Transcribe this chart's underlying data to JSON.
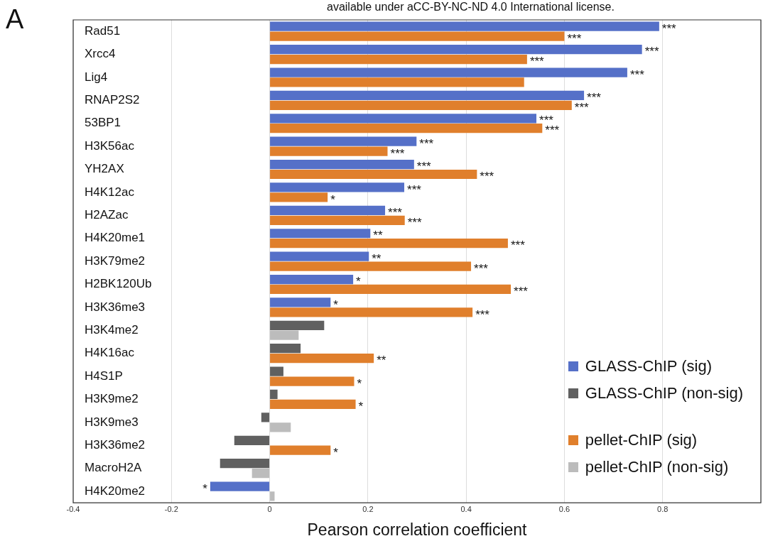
{
  "chart_data": {
    "type": "bar",
    "orientation": "horizontal",
    "xlabel": "Pearson correlation coefficient",
    "annotations": [
      "A",
      "available under aCC-BY-NC-ND 4.0 International license."
    ],
    "categories": [
      "Rad51",
      "Xrcc4",
      "Lig4",
      "RNAP2S2",
      "53BP1",
      "H3K56ac",
      "YH2AX",
      "H4K12ac",
      "H2AZac",
      "H4K20me1",
      "H3K79me2",
      "H2BK120Ub",
      "H3K36me3",
      "H3K4me2",
      "H4K16ac",
      "H4S1P",
      "H3K9me2",
      "H3K9me3",
      "H3K36me2",
      "MacroH2A",
      "H4K20me2"
    ],
    "series": [
      {
        "name": "GLASS-ChIP (sig)",
        "color": "#5570c8",
        "values": [
          0.793,
          0.758,
          0.728,
          0.64,
          0.543,
          0.299,
          0.294,
          0.274,
          0.235,
          0.205,
          0.202,
          0.17,
          0.124,
          null,
          null,
          null,
          null,
          null,
          null,
          null,
          -0.121
        ],
        "value_labels": [
          "***",
          "***",
          "***",
          "***",
          "***",
          "***",
          "***",
          "***",
          "***",
          "**",
          "**",
          "*",
          "*",
          null,
          null,
          null,
          null,
          null,
          null,
          null,
          "*"
        ]
      },
      {
        "name": "GLASS-ChIP (non-sig)",
        "color": "#606060",
        "values": [
          null,
          null,
          null,
          null,
          null,
          null,
          null,
          null,
          null,
          null,
          null,
          null,
          null,
          0.111,
          0.063,
          0.028,
          0.016,
          -0.017,
          -0.072,
          -0.101,
          null
        ],
        "value_labels": [
          null,
          null,
          null,
          null,
          null,
          null,
          null,
          null,
          null,
          null,
          null,
          null,
          null,
          null,
          null,
          null,
          null,
          null,
          null,
          null,
          null
        ]
      },
      {
        "name": "pellet-ChIP (sig)",
        "color": "#e07f2c",
        "values": [
          0.6,
          0.524,
          0.518,
          0.615,
          0.555,
          0.24,
          0.422,
          0.118,
          0.275,
          0.485,
          0.41,
          0.491,
          0.413,
          null,
          0.212,
          0.172,
          0.175,
          null,
          0.124,
          null,
          null
        ],
        "value_labels": [
          "***",
          "***",
          null,
          "***",
          "***",
          "***",
          "***",
          "*",
          "***",
          "***",
          "***",
          "***",
          "***",
          null,
          "**",
          "*",
          "*",
          null,
          "*",
          null,
          null
        ]
      },
      {
        "name": "pellet-ChIP (non-sig)",
        "color": "#bcbcbc",
        "values": [
          null,
          null,
          null,
          null,
          null,
          null,
          null,
          null,
          null,
          null,
          null,
          null,
          null,
          0.059,
          null,
          null,
          null,
          0.043,
          null,
          -0.036,
          0.01
        ],
        "value_labels": [
          null,
          null,
          null,
          null,
          null,
          null,
          null,
          null,
          null,
          null,
          null,
          null,
          null,
          null,
          null,
          null,
          null,
          null,
          null,
          null,
          null
        ]
      }
    ],
    "xlim": [
      -0.4,
      1.0
    ],
    "xticks": [
      -0.4,
      -0.2,
      0,
      0.2,
      0.4,
      0.6,
      0.8,
      {
        "value": 1.0,
        "label": null
      }
    ],
    "grid": "x",
    "legend": "bottom right"
  }
}
